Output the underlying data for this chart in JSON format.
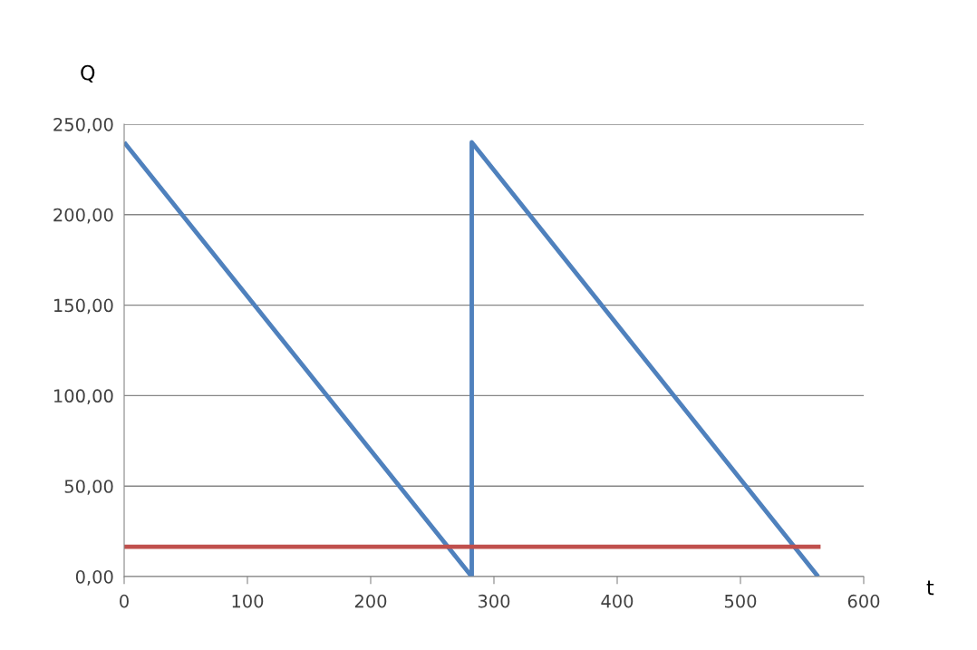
{
  "chart_data": {
    "type": "line",
    "xlabel": "t",
    "ylabel": "Q",
    "series": [
      {
        "color": "#4f81bd",
        "x": [
          0,
          282,
          282,
          563
        ],
        "values": [
          240,
          0,
          240,
          0
        ]
      },
      {
        "color": "#c0504d",
        "x": [
          0,
          565
        ],
        "values": [
          16.5,
          16.5
        ]
      }
    ],
    "xlim": [
      0,
      600
    ],
    "xticks": [
      0,
      100,
      200,
      300,
      400,
      500,
      600
    ],
    "ylim": [
      0,
      250
    ],
    "yticks": [
      {
        "value": 0,
        "label": "0,00"
      },
      {
        "value": 50,
        "label": "50,00"
      },
      {
        "value": 100,
        "label": "100,00"
      },
      {
        "value": 150,
        "label": "150,00"
      },
      {
        "value": 200,
        "label": "200,00"
      },
      {
        "value": 250,
        "label": "250,00"
      }
    ],
    "grid": "y",
    "marker": "none",
    "line_style": "solid"
  }
}
